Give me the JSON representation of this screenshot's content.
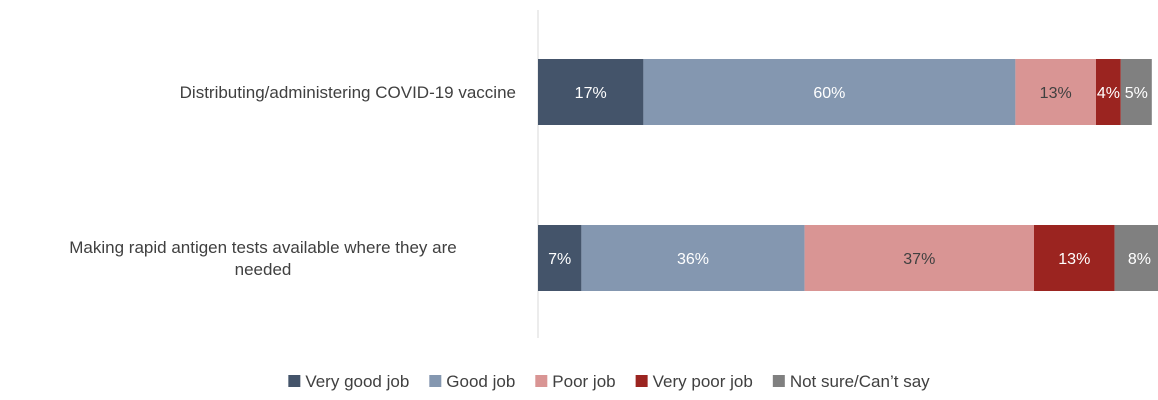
{
  "chart_data": {
    "type": "bar",
    "orientation": "horizontal",
    "stacked": true,
    "categories": [
      [
        "Distributing/administering COVID-19 vaccine"
      ],
      [
        "Making rapid antigen tests available where they are",
        "needed"
      ]
    ],
    "series": [
      {
        "name": "Very good job",
        "color": "#44546a",
        "label_color": "#ffffff",
        "values": [
          17,
          7
        ]
      },
      {
        "name": "Good job",
        "color": "#8497b0",
        "label_color": "#ffffff",
        "values": [
          60,
          36
        ]
      },
      {
        "name": "Poor job",
        "color": "#d99594",
        "label_color": "#404040",
        "values": [
          13,
          37
        ]
      },
      {
        "name": "Very poor job",
        "color": "#9b2420",
        "label_color": "#ffffff",
        "values": [
          4,
          13
        ]
      },
      {
        "name": "Not sure/Can’t say",
        "color": "#808080",
        "label_color": "#ffffff",
        "values": [
          5,
          8
        ]
      }
    ],
    "value_suffix": "%",
    "xlim": [
      0,
      100
    ],
    "grid": false,
    "legend_position": "bottom"
  }
}
